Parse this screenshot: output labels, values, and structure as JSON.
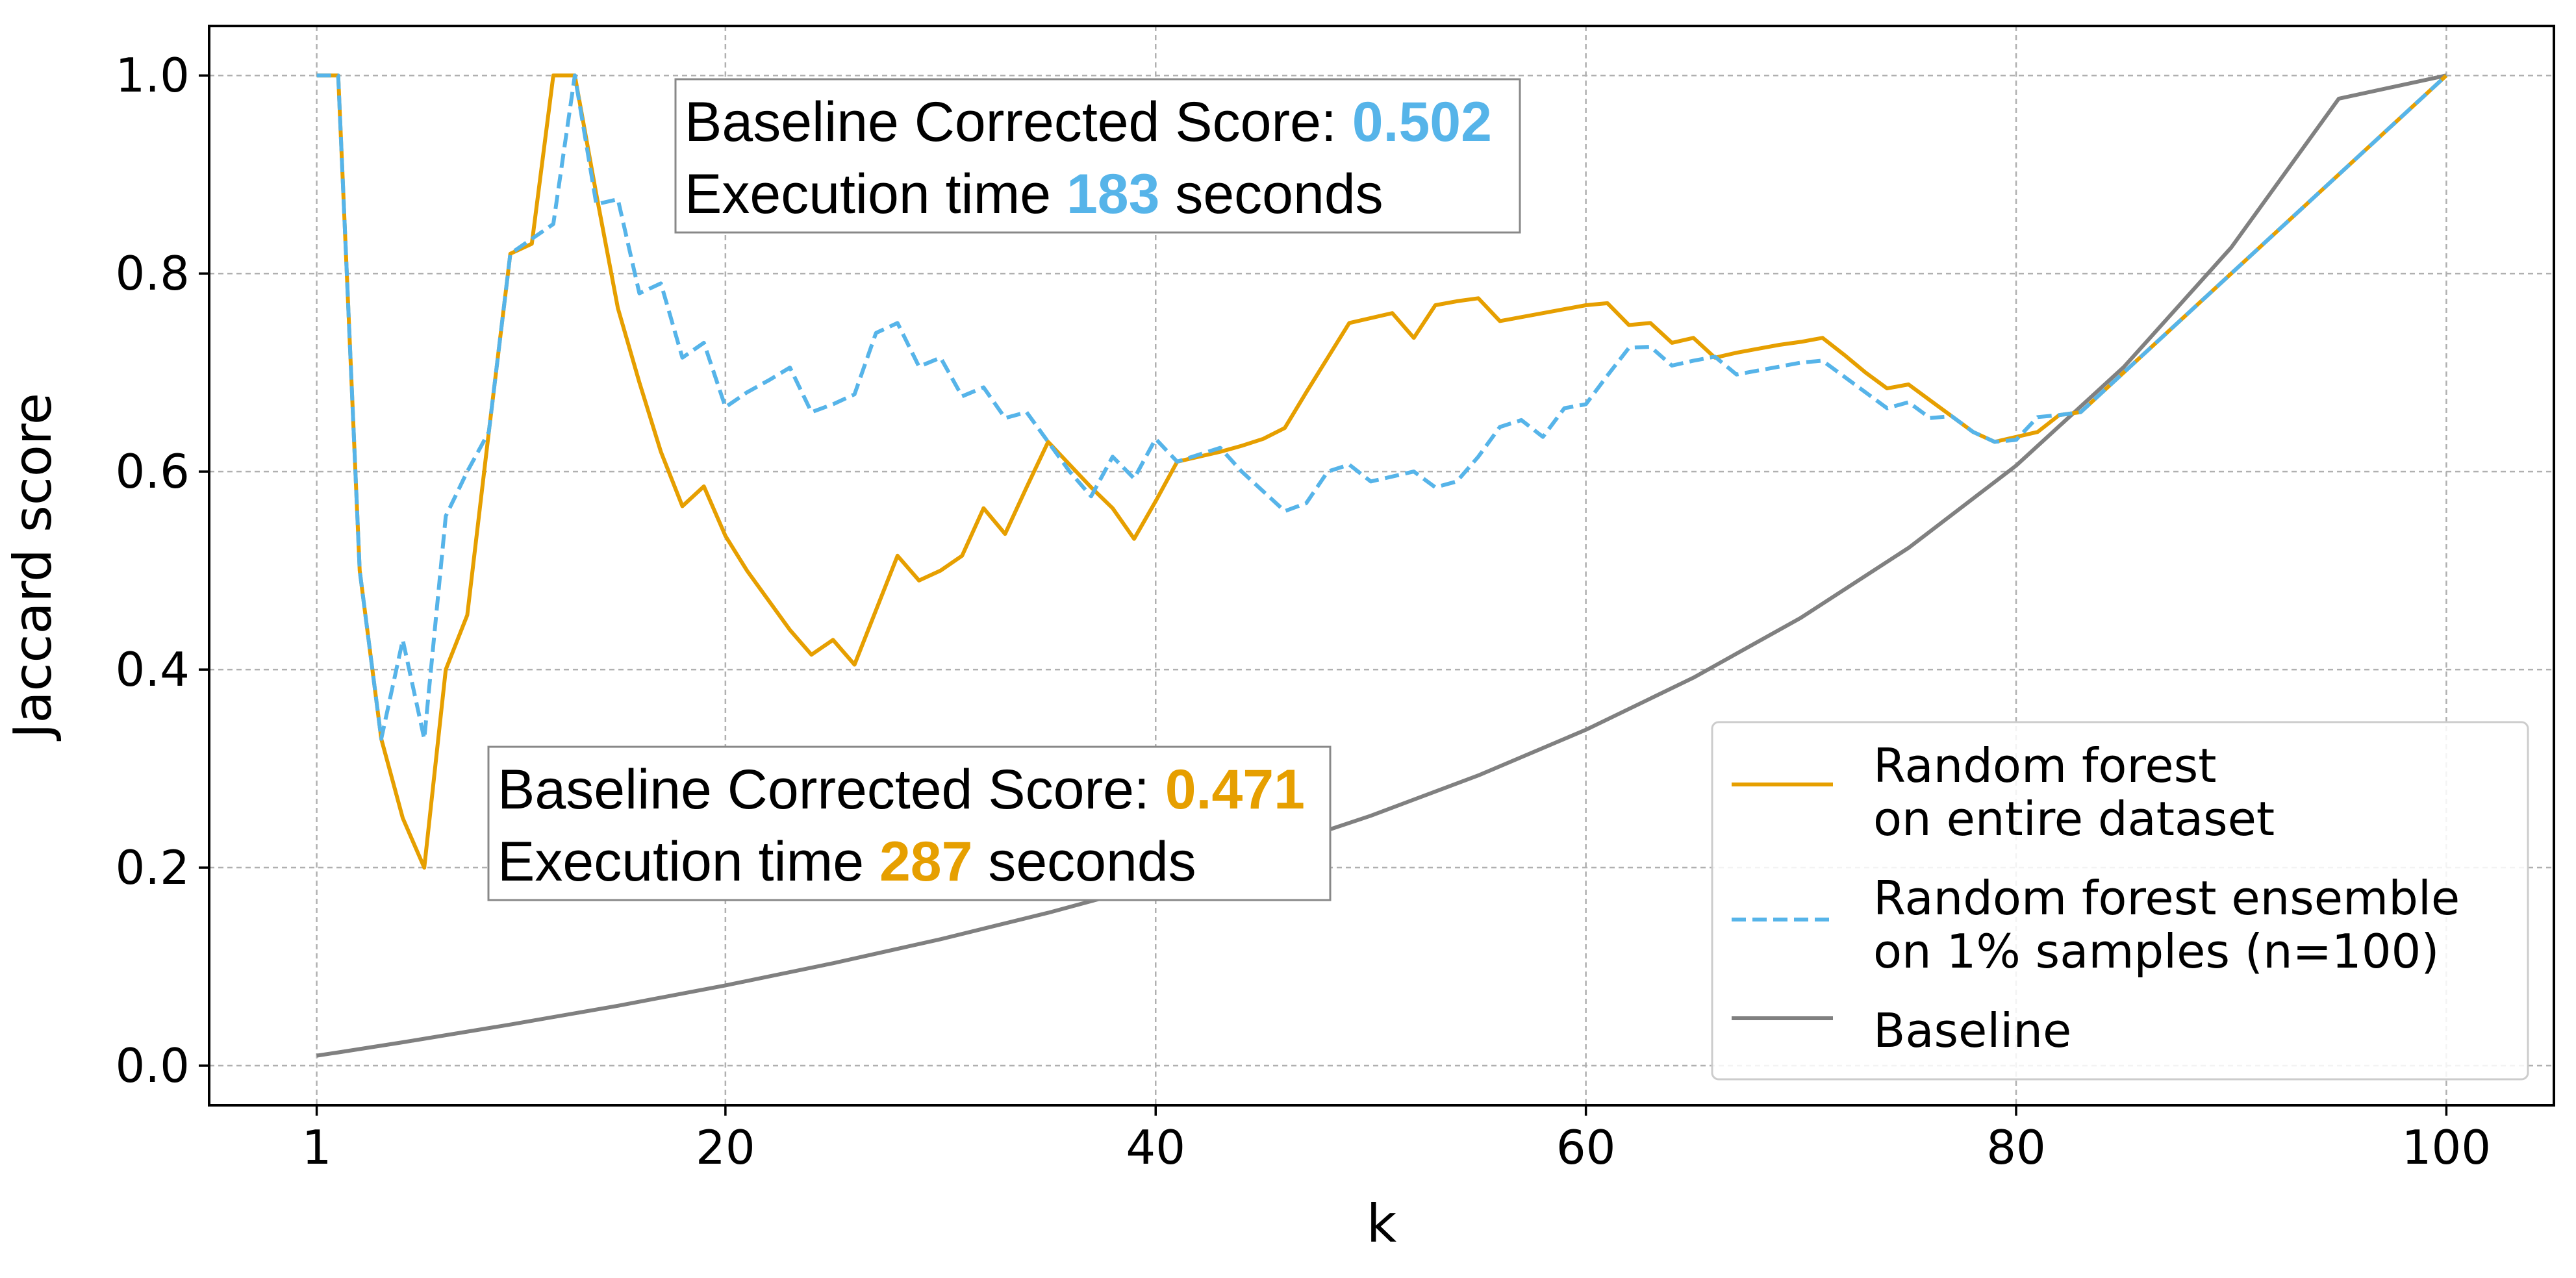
{
  "chart_data": {
    "type": "line",
    "title": "",
    "xlabel": "k",
    "ylabel": "Jaccard score",
    "xlim": [
      -4,
      105
    ],
    "ylim": [
      -0.04,
      1.05
    ],
    "xticks": [
      1,
      20,
      40,
      60,
      80,
      100
    ],
    "yticks": [
      0.0,
      0.2,
      0.4,
      0.6,
      0.8,
      1.0
    ],
    "ytick_labels": [
      "0.0",
      "0.2",
      "0.4",
      "0.6",
      "0.8",
      "1.0"
    ],
    "grid": true,
    "legend_position": "lower right",
    "colors": {
      "rf": "#e69f00",
      "ensemble": "#56b4e9",
      "baseline": "#808080"
    },
    "legend": [
      {
        "lines": [
          "Random forest",
          "on entire dataset"
        ],
        "style": "solid",
        "color": "#e69f00"
      },
      {
        "lines": [
          "Random forest ensemble",
          "on 1% samples (n=100)"
        ],
        "style": "dashed",
        "color": "#56b4e9"
      },
      {
        "lines": [
          "Baseline"
        ],
        "style": "solid",
        "color": "#808080"
      }
    ],
    "annotations": [
      {
        "color": "#56b4e9",
        "line1_prefix": "Baseline Corrected Score: ",
        "line1_value": "0.502",
        "line2_prefix": "Execution time ",
        "line2_value": "183",
        "line2_suffix": " seconds"
      },
      {
        "color": "#e69f00",
        "line1_prefix": "Baseline Corrected Score: ",
        "line1_value": "0.471",
        "line2_prefix": "Execution time ",
        "line2_value": "287",
        "line2_suffix": " seconds"
      }
    ],
    "series": [
      {
        "name": "Random forest on entire dataset",
        "style": "solid",
        "color": "#e69f00",
        "points": [
          [
            1,
            1.0
          ],
          [
            2,
            1.0
          ],
          [
            3,
            0.5
          ],
          [
            4,
            0.33
          ],
          [
            5,
            0.25
          ],
          [
            6,
            0.2
          ],
          [
            7,
            0.4
          ],
          [
            8,
            0.455
          ],
          [
            9,
            0.64
          ],
          [
            10,
            0.82
          ],
          [
            11,
            0.83
          ],
          [
            12,
            1.0
          ],
          [
            13,
            1.0
          ],
          [
            14,
            0.88
          ],
          [
            15,
            0.765
          ],
          [
            16,
            0.69
          ],
          [
            17,
            0.62
          ],
          [
            18,
            0.565
          ],
          [
            19,
            0.585
          ],
          [
            20,
            0.535
          ],
          [
            21,
            0.5
          ],
          [
            22,
            0.47
          ],
          [
            23,
            0.44
          ],
          [
            24,
            0.415
          ],
          [
            25,
            0.43
          ],
          [
            26,
            0.405
          ],
          [
            27,
            0.46
          ],
          [
            28,
            0.515
          ],
          [
            29,
            0.49
          ],
          [
            30,
            0.5
          ],
          [
            31,
            0.515
          ],
          [
            32,
            0.563
          ],
          [
            33,
            0.537
          ],
          [
            34,
            0.584
          ],
          [
            35,
            0.63
          ],
          [
            36,
            0.607
          ],
          [
            37,
            0.584
          ],
          [
            38,
            0.563
          ],
          [
            39,
            0.532
          ],
          [
            40,
            0.57
          ],
          [
            41,
            0.61
          ],
          [
            42,
            0.615
          ],
          [
            43,
            0.62
          ],
          [
            44,
            0.626
          ],
          [
            45,
            0.633
          ],
          [
            46,
            0.644
          ],
          [
            47,
            0.68
          ],
          [
            48,
            0.715
          ],
          [
            49,
            0.75
          ],
          [
            50,
            0.755
          ],
          [
            51,
            0.76
          ],
          [
            52,
            0.735
          ],
          [
            53,
            0.768
          ],
          [
            54,
            0.772
          ],
          [
            55,
            0.775
          ],
          [
            56,
            0.752
          ],
          [
            57,
            0.756
          ],
          [
            58,
            0.76
          ],
          [
            59,
            0.764
          ],
          [
            60,
            0.768
          ],
          [
            61,
            0.77
          ],
          [
            62,
            0.748
          ],
          [
            63,
            0.75
          ],
          [
            64,
            0.73
          ],
          [
            65,
            0.735
          ],
          [
            66,
            0.715
          ],
          [
            67,
            0.72
          ],
          [
            68,
            0.724
          ],
          [
            69,
            0.728
          ],
          [
            70,
            0.731
          ],
          [
            71,
            0.735
          ],
          [
            72,
            0.718
          ],
          [
            73,
            0.7
          ],
          [
            74,
            0.684
          ],
          [
            75,
            0.688
          ],
          [
            76,
            0.672
          ],
          [
            77,
            0.656
          ],
          [
            78,
            0.64
          ],
          [
            79,
            0.63
          ],
          [
            80,
            0.635
          ],
          [
            81,
            0.64
          ],
          [
            82,
            0.657
          ],
          [
            83,
            0.66
          ],
          [
            100,
            1.0
          ]
        ]
      },
      {
        "name": "Random forest ensemble on 1% samples (n=100)",
        "style": "dashed",
        "color": "#56b4e9",
        "points": [
          [
            1,
            1.0
          ],
          [
            2,
            1.0
          ],
          [
            3,
            0.5
          ],
          [
            4,
            0.33
          ],
          [
            5,
            0.43
          ],
          [
            6,
            0.33
          ],
          [
            7,
            0.555
          ],
          [
            8,
            0.6
          ],
          [
            9,
            0.64
          ],
          [
            10,
            0.82
          ],
          [
            11,
            0.835
          ],
          [
            12,
            0.85
          ],
          [
            13,
            1.0
          ],
          [
            14,
            0.87
          ],
          [
            15,
            0.875
          ],
          [
            16,
            0.78
          ],
          [
            17,
            0.79
          ],
          [
            18,
            0.715
          ],
          [
            19,
            0.73
          ],
          [
            20,
            0.665
          ],
          [
            21,
            0.68
          ],
          [
            22,
            0.692
          ],
          [
            23,
            0.705
          ],
          [
            24,
            0.66
          ],
          [
            25,
            0.668
          ],
          [
            26,
            0.678
          ],
          [
            27,
            0.74
          ],
          [
            28,
            0.75
          ],
          [
            29,
            0.706
          ],
          [
            30,
            0.715
          ],
          [
            31,
            0.676
          ],
          [
            32,
            0.685
          ],
          [
            33,
            0.654
          ],
          [
            34,
            0.66
          ],
          [
            35,
            0.63
          ],
          [
            36,
            0.6
          ],
          [
            37,
            0.575
          ],
          [
            38,
            0.615
          ],
          [
            39,
            0.593
          ],
          [
            40,
            0.633
          ],
          [
            41,
            0.61
          ],
          [
            42,
            0.617
          ],
          [
            43,
            0.624
          ],
          [
            44,
            0.6
          ],
          [
            45,
            0.58
          ],
          [
            46,
            0.56
          ],
          [
            47,
            0.568
          ],
          [
            48,
            0.6
          ],
          [
            49,
            0.607
          ],
          [
            50,
            0.59
          ],
          [
            51,
            0.595
          ],
          [
            52,
            0.6
          ],
          [
            53,
            0.584
          ],
          [
            54,
            0.59
          ],
          [
            55,
            0.615
          ],
          [
            56,
            0.645
          ],
          [
            57,
            0.652
          ],
          [
            58,
            0.635
          ],
          [
            59,
            0.664
          ],
          [
            60,
            0.668
          ],
          [
            61,
            0.697
          ],
          [
            62,
            0.725
          ],
          [
            63,
            0.726
          ],
          [
            64,
            0.707
          ],
          [
            65,
            0.712
          ],
          [
            66,
            0.716
          ],
          [
            67,
            0.698
          ],
          [
            68,
            0.702
          ],
          [
            69,
            0.706
          ],
          [
            70,
            0.71
          ],
          [
            71,
            0.712
          ],
          [
            72,
            0.696
          ],
          [
            73,
            0.68
          ],
          [
            74,
            0.664
          ],
          [
            75,
            0.67
          ],
          [
            76,
            0.654
          ],
          [
            77,
            0.656
          ],
          [
            78,
            0.64
          ],
          [
            79,
            0.63
          ],
          [
            80,
            0.632
          ],
          [
            81,
            0.655
          ],
          [
            82,
            0.657
          ],
          [
            83,
            0.66
          ],
          [
            100,
            1.0
          ]
        ]
      },
      {
        "name": "Baseline",
        "style": "solid",
        "color": "#808080",
        "points": [
          [
            1,
            0.0101
          ],
          [
            2,
            0.0134
          ],
          [
            5,
            0.0236
          ],
          [
            10,
            0.0415
          ],
          [
            15,
            0.0605
          ],
          [
            20,
            0.0811
          ],
          [
            25,
            0.1034
          ],
          [
            30,
            0.1277
          ],
          [
            35,
            0.1544
          ],
          [
            40,
            0.1837
          ],
          [
            45,
            0.2162
          ],
          [
            50,
            0.2524
          ],
          [
            55,
            0.2931
          ],
          [
            60,
            0.3392
          ],
          [
            65,
            0.3918
          ],
          [
            70,
            0.4524
          ],
          [
            75,
            0.5229
          ],
          [
            80,
            0.606
          ],
          [
            85,
            0.7054
          ],
          [
            90,
            0.8263
          ],
          [
            95,
            0.9766
          ],
          [
            100,
            1.0
          ]
        ]
      }
    ]
  }
}
